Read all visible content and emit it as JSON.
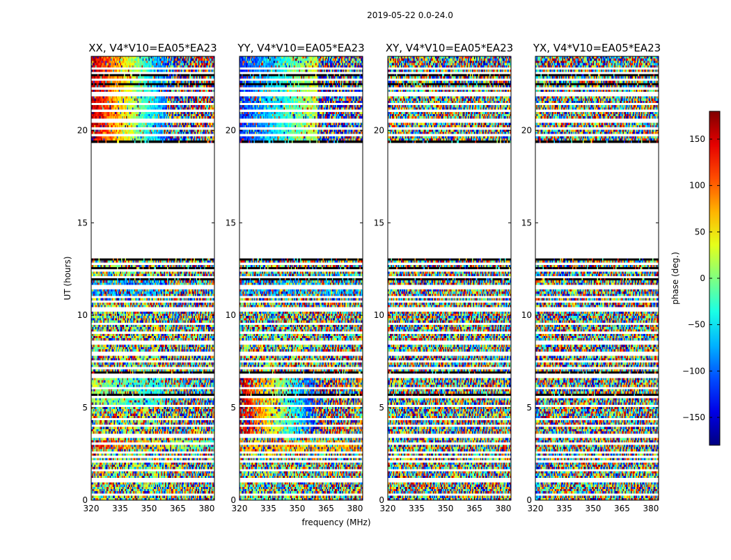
{
  "chart_data": {
    "type": "heatmap",
    "suptitle": "2019-05-22 0.0-24.0",
    "xlabel": "frequency (MHz)",
    "ylabel": "UT (hours)",
    "xlim": [
      320,
      384
    ],
    "ylim": [
      0,
      24
    ],
    "xticks": [
      320,
      335,
      350,
      365,
      380
    ],
    "yticks": [
      0,
      5,
      10,
      15,
      20
    ],
    "panels": [
      {
        "title": "XX, V4*V10=EA05*EA23",
        "pattern": "xx"
      },
      {
        "title": "YY, V4*V10=EA05*EA23",
        "pattern": "yy"
      },
      {
        "title": "XY, V4*V10=EA05*EA23",
        "pattern": "noise"
      },
      {
        "title": "YX, V4*V10=EA05*EA23",
        "pattern": "noise"
      }
    ],
    "data_time_ranges_hours": [
      [
        0.0,
        13.1
      ],
      [
        19.3,
        24.0
      ]
    ],
    "empty_time_range_hours": [
      13.1,
      19.3
    ],
    "colorbar": {
      "label": "phase (deg.)",
      "range": [
        -180,
        180
      ],
      "ticks": [
        -150,
        -100,
        -50,
        0,
        50,
        100,
        150
      ],
      "tick_labels": [
        "−150",
        "−100",
        "−50",
        "0",
        "50",
        "100",
        "150"
      ],
      "colormap": "jet"
    }
  }
}
